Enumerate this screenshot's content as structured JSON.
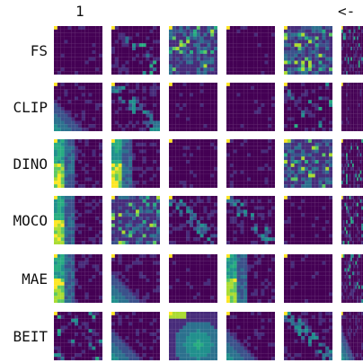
{
  "header": {
    "page_number": "1",
    "back_label": "<-"
  },
  "rows": [
    {
      "label": "FS",
      "patterns": [
        "corner",
        "sparse",
        "dense",
        "dark",
        "dense",
        "sparse"
      ]
    },
    {
      "label": "CLIP",
      "patterns": [
        "bottomleft",
        "diag",
        "dark",
        "dark",
        "sparse",
        "dark"
      ]
    },
    {
      "label": "DINO",
      "patterns": [
        "leftglow",
        "leftglow",
        "dark",
        "corner",
        "dense",
        "sparse"
      ]
    },
    {
      "label": "MOCO",
      "patterns": [
        "leftglow",
        "dense",
        "diag",
        "diag",
        "dark",
        "sparse"
      ]
    },
    {
      "label": "MAE",
      "patterns": [
        "leftglow",
        "bottomleft",
        "dark",
        "leftglow",
        "dark",
        "sparse"
      ]
    },
    {
      "label": "BEIT",
      "patterns": [
        "sparse",
        "bottomleft",
        "bigblob",
        "bottomleft",
        "diag",
        "bottomleft"
      ]
    }
  ],
  "palette": [
    "#440154",
    "#472c7a",
    "#3b518b",
    "#2c718e",
    "#21908d",
    "#27ad81",
    "#5cc863",
    "#aadc32",
    "#fde725"
  ]
}
